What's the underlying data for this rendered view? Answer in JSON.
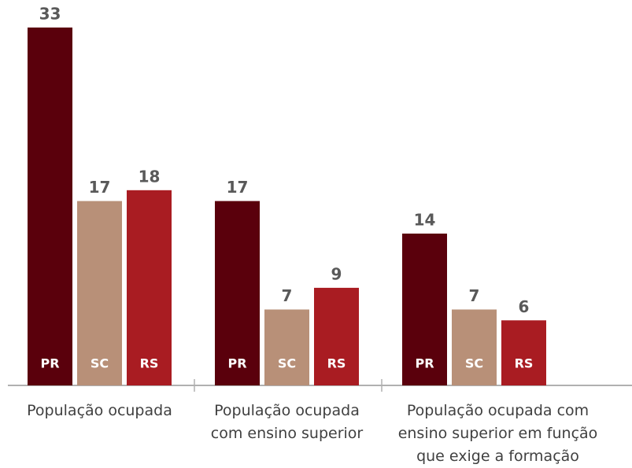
{
  "chart_data": {
    "type": "bar",
    "categories": [
      "População ocupada",
      "População ocupada com ensino superior",
      "População ocupada com ensino superior em função que exige a formação"
    ],
    "series": [
      {
        "name": "PR",
        "color": "#5a000c",
        "values": [
          33,
          17,
          14
        ]
      },
      {
        "name": "SC",
        "color": "#b89078",
        "values": [
          17,
          7,
          7
        ]
      },
      {
        "name": "RS",
        "color": "#a91c22",
        "values": [
          18,
          9,
          6
        ]
      }
    ],
    "ylim": [
      0,
      33
    ]
  }
}
